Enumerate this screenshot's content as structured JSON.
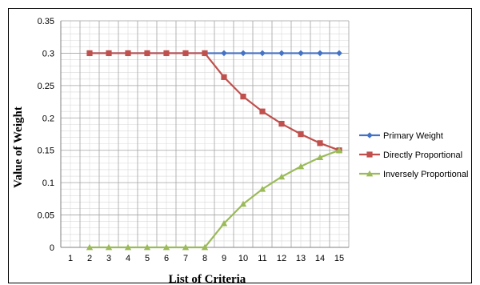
{
  "chart_data": {
    "type": "line",
    "xlabel": "List of Criteria",
    "ylabel": "Value of Weight",
    "x_categories": [
      "1",
      "2",
      "3",
      "4",
      "5",
      "6",
      "7",
      "8",
      "9",
      "10",
      "11",
      "12",
      "13",
      "14",
      "15"
    ],
    "y_ticks": [
      "0",
      "0.05",
      "0.1",
      "0.15",
      "0.2",
      "0.25",
      "0.3",
      "0.35"
    ],
    "ylim": [
      0,
      0.35
    ],
    "grid": true,
    "legend_position": "right",
    "series": [
      {
        "name": "Primary Weight",
        "color": "#4472C4",
        "marker": "diamond",
        "x": [
          2,
          3,
          4,
          5,
          6,
          7,
          8,
          9,
          10,
          11,
          12,
          13,
          14,
          15
        ],
        "values": [
          0.3,
          0.3,
          0.3,
          0.3,
          0.3,
          0.3,
          0.3,
          0.3,
          0.3,
          0.3,
          0.3,
          0.3,
          0.3,
          0.3
        ]
      },
      {
        "name": "Directly Proportional",
        "color": "#C0504D",
        "marker": "square",
        "x": [
          2,
          3,
          4,
          5,
          6,
          7,
          8,
          9,
          10,
          11,
          12,
          13,
          14,
          15
        ],
        "values": [
          0.3,
          0.3,
          0.3,
          0.3,
          0.3,
          0.3,
          0.3,
          0.263,
          0.233,
          0.21,
          0.191,
          0.175,
          0.161,
          0.15
        ]
      },
      {
        "name": "Inversely Proportional",
        "color": "#9BBB59",
        "marker": "triangle",
        "x": [
          2,
          3,
          4,
          5,
          6,
          7,
          8,
          9,
          10,
          11,
          12,
          13,
          14,
          15
        ],
        "values": [
          0,
          0,
          0,
          0,
          0,
          0,
          0,
          0.037,
          0.067,
          0.09,
          0.109,
          0.125,
          0.139,
          0.15
        ]
      }
    ]
  }
}
